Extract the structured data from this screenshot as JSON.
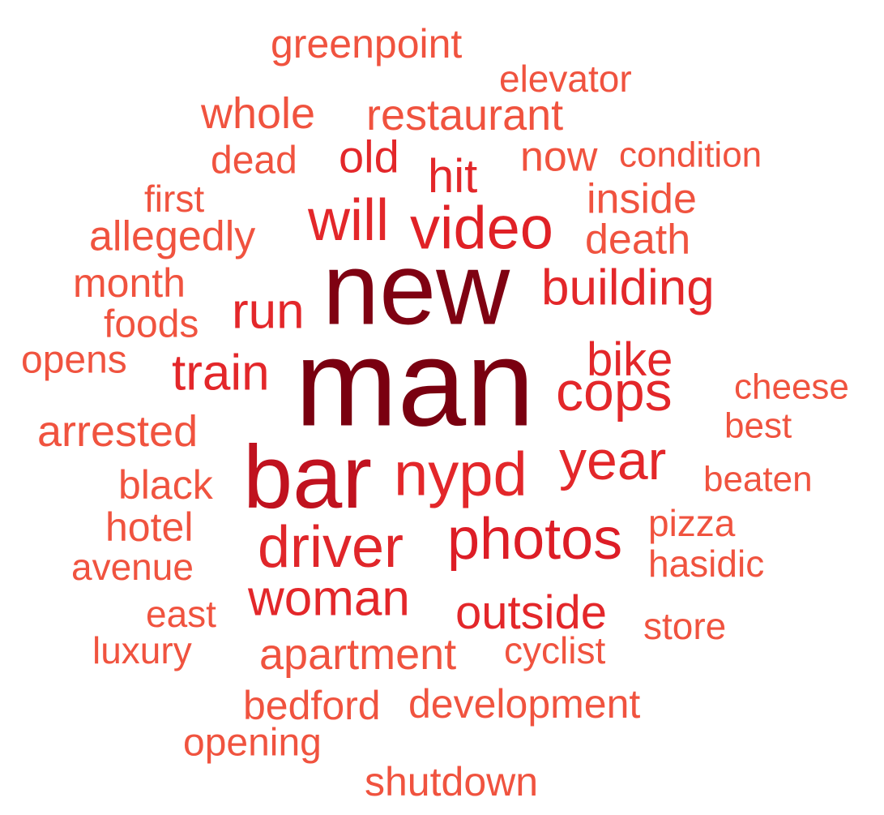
{
  "palette": {
    "darkest": "#7a0010",
    "dark": "#c0121f",
    "medium": "#e3272a",
    "light": "#f0533f"
  },
  "words": [
    {
      "text": "man",
      "weight": 1.0,
      "color": "#7a0010"
    },
    {
      "text": "new",
      "weight": 0.83,
      "color": "#7f0212"
    },
    {
      "text": "bar",
      "weight": 0.72,
      "color": "#c0121f"
    },
    {
      "text": "video",
      "weight": 0.5,
      "color": "#e02126"
    },
    {
      "text": "nypd",
      "weight": 0.5,
      "color": "#e3272a"
    },
    {
      "text": "photos",
      "weight": 0.5,
      "color": "#dd1d26"
    },
    {
      "text": "will",
      "weight": 0.48,
      "color": "#e3272a"
    },
    {
      "text": "driver",
      "weight": 0.47,
      "color": "#e0262a"
    },
    {
      "text": "cops",
      "weight": 0.47,
      "color": "#e3272a"
    },
    {
      "text": "year",
      "weight": 0.45,
      "color": "#e3272a"
    },
    {
      "text": "building",
      "weight": 0.41,
      "color": "#e3272a"
    },
    {
      "text": "run",
      "weight": 0.41,
      "color": "#e3272a"
    },
    {
      "text": "train",
      "weight": 0.41,
      "color": "#e3272a"
    },
    {
      "text": "woman",
      "weight": 0.41,
      "color": "#e3272a"
    },
    {
      "text": "outside",
      "weight": 0.41,
      "color": "#e3272a"
    },
    {
      "text": "bike",
      "weight": 0.39,
      "color": "#e3272a"
    },
    {
      "text": "hit",
      "weight": 0.39,
      "color": "#e3272a"
    },
    {
      "text": "old",
      "weight": 0.38,
      "color": "#e3272a"
    },
    {
      "text": "restaurant",
      "weight": 0.36,
      "color": "#f0533f"
    },
    {
      "text": "apartment",
      "weight": 0.36,
      "color": "#f0533f"
    },
    {
      "text": "whole",
      "weight": 0.36,
      "color": "#f0533f"
    },
    {
      "text": "arrested",
      "weight": 0.36,
      "color": "#f0533f"
    },
    {
      "text": "allegedly",
      "weight": 0.34,
      "color": "#f0533f"
    },
    {
      "text": "death",
      "weight": 0.34,
      "color": "#f0533f"
    },
    {
      "text": "inside",
      "weight": 0.34,
      "color": "#f0533f"
    },
    {
      "text": "now",
      "weight": 0.34,
      "color": "#f0533f"
    },
    {
      "text": "development",
      "weight": 0.33,
      "color": "#f0533f"
    },
    {
      "text": "shutdown",
      "weight": 0.32,
      "color": "#f0533f"
    },
    {
      "text": "greenpoint",
      "weight": 0.32,
      "color": "#f0533f"
    },
    {
      "text": "month",
      "weight": 0.32,
      "color": "#f0533f"
    },
    {
      "text": "black",
      "weight": 0.32,
      "color": "#f0533f"
    },
    {
      "text": "hotel",
      "weight": 0.32,
      "color": "#f0533f"
    },
    {
      "text": "bedford",
      "weight": 0.32,
      "color": "#f0533f"
    },
    {
      "text": "opens",
      "weight": 0.31,
      "color": "#f0533f"
    },
    {
      "text": "opening",
      "weight": 0.31,
      "color": "#f0533f"
    },
    {
      "text": "foods",
      "weight": 0.31,
      "color": "#f0533f"
    },
    {
      "text": "dead",
      "weight": 0.31,
      "color": "#f0533f"
    },
    {
      "text": "elevator",
      "weight": 0.3,
      "color": "#f0533f"
    },
    {
      "text": "store",
      "weight": 0.3,
      "color": "#f0533f"
    },
    {
      "text": "cyclist",
      "weight": 0.3,
      "color": "#f0533f"
    },
    {
      "text": "hasidic",
      "weight": 0.3,
      "color": "#f0533f"
    },
    {
      "text": "pizza",
      "weight": 0.3,
      "color": "#f0533f"
    },
    {
      "text": "luxury",
      "weight": 0.3,
      "color": "#f0533f"
    },
    {
      "text": "avenue",
      "weight": 0.29,
      "color": "#f0533f"
    },
    {
      "text": "first",
      "weight": 0.29,
      "color": "#f0533f"
    },
    {
      "text": "east",
      "weight": 0.29,
      "color": "#f0533f"
    },
    {
      "text": "cheese",
      "weight": 0.28,
      "color": "#f0533f"
    },
    {
      "text": "condition",
      "weight": 0.28,
      "color": "#f0533f"
    },
    {
      "text": "beaten",
      "weight": 0.28,
      "color": "#f0533f"
    },
    {
      "text": "best",
      "weight": 0.28,
      "color": "#f0533f"
    }
  ]
}
